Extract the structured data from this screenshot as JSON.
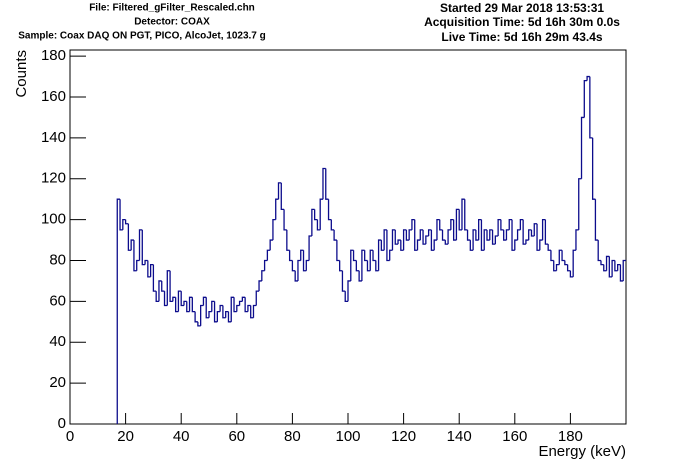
{
  "chart_data": {
    "type": "histogram",
    "annotations": [
      "File: Filtered_gFilter_Rescaled.chn",
      "Detector: COAX",
      "Sample: Coax DAQ ON PGT, PICO, AlcoJet, 1023.7 g",
      "Started 29 Mar 2018 13:53:31",
      "Acquisition Time: 5d 16h 30m 0.0s",
      "Live Time: 5d 16h 29m 43.4s"
    ],
    "x_label": "Energy (keV)",
    "y_label": "Counts",
    "color": "#0c0c8c",
    "xlim": [
      0,
      200
    ],
    "ylim": [
      0,
      183
    ],
    "xticks": [
      0,
      20,
      40,
      60,
      80,
      100,
      120,
      140,
      160,
      180
    ],
    "yticks": [
      0,
      20,
      40,
      60,
      80,
      100,
      120,
      140,
      160,
      180
    ],
    "bins": [
      17,
      18,
      19,
      20,
      21,
      22,
      23,
      24,
      25,
      26,
      27,
      28,
      29,
      30,
      31,
      32,
      33,
      34,
      35,
      36,
      37,
      38,
      39,
      40,
      41,
      42,
      43,
      44,
      45,
      46,
      47,
      48,
      49,
      50,
      51,
      52,
      53,
      54,
      55,
      56,
      57,
      58,
      59,
      60,
      61,
      62,
      63,
      64,
      65,
      66,
      67,
      68,
      69,
      70,
      71,
      72,
      73,
      74,
      75,
      76,
      77,
      78,
      79,
      80,
      81,
      82,
      83,
      84,
      85,
      86,
      87,
      88,
      89,
      90,
      91,
      92,
      93,
      94,
      95,
      96,
      97,
      98,
      99,
      100,
      101,
      102,
      103,
      104,
      105,
      106,
      107,
      108,
      109,
      110,
      111,
      112,
      113,
      114,
      115,
      116,
      117,
      118,
      119,
      120,
      121,
      122,
      123,
      124,
      125,
      126,
      127,
      128,
      129,
      130,
      131,
      132,
      133,
      134,
      135,
      136,
      137,
      138,
      139,
      140,
      141,
      142,
      143,
      144,
      145,
      146,
      147,
      148,
      149,
      150,
      151,
      152,
      153,
      154,
      155,
      156,
      157,
      158,
      159,
      160,
      161,
      162,
      163,
      164,
      165,
      166,
      167,
      168,
      169,
      170,
      171,
      172,
      173,
      174,
      175,
      176,
      177,
      178,
      179,
      180,
      181,
      182,
      183,
      184,
      185,
      186,
      187,
      188,
      189,
      190,
      191,
      192,
      193,
      194,
      195,
      196,
      197,
      198,
      199,
      200
    ],
    "values": [
      110,
      95,
      100,
      98,
      85,
      90,
      75,
      80,
      95,
      78,
      80,
      72,
      78,
      65,
      60,
      70,
      65,
      58,
      75,
      60,
      62,
      55,
      65,
      58,
      60,
      55,
      62,
      55,
      50,
      48,
      58,
      62,
      52,
      55,
      60,
      50,
      55,
      58,
      52,
      55,
      50,
      62,
      55,
      58,
      60,
      62,
      55,
      58,
      52,
      58,
      65,
      70,
      75,
      80,
      85,
      90,
      100,
      110,
      118,
      105,
      95,
      85,
      80,
      75,
      70,
      80,
      85,
      75,
      80,
      92,
      105,
      100,
      95,
      110,
      125,
      110,
      100,
      95,
      90,
      80,
      75,
      65,
      60,
      70,
      85,
      80,
      75,
      70,
      85,
      80,
      75,
      85,
      80,
      75,
      90,
      85,
      95,
      80,
      85,
      95,
      88,
      90,
      85,
      95,
      90,
      95,
      100,
      85,
      90,
      95,
      88,
      92,
      95,
      85,
      90,
      100,
      95,
      90,
      88,
      95,
      100,
      90,
      105,
      95,
      110,
      95,
      90,
      85,
      95,
      90,
      100,
      85,
      95,
      90,
      95,
      88,
      92,
      100,
      95,
      90,
      95,
      100,
      85,
      90,
      95,
      100,
      88,
      90,
      95,
      92,
      98,
      85,
      90,
      100,
      88,
      85,
      80,
      75,
      78,
      85,
      80,
      78,
      75,
      72,
      85,
      95,
      120,
      150,
      168,
      170,
      140,
      110,
      90,
      80,
      78,
      75,
      82,
      72,
      80,
      75,
      78,
      70,
      80
    ]
  }
}
